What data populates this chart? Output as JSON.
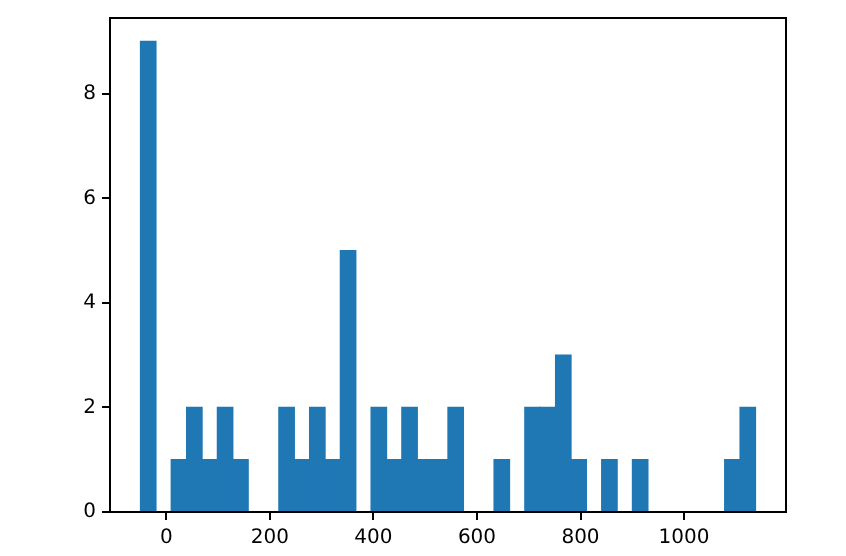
{
  "chart_data": {
    "type": "histogram",
    "bins": [
      -50,
      -20.3,
      9.4,
      39.1,
      68.8,
      98.5,
      128.2,
      157.9,
      187.6,
      217.3,
      247,
      276.7,
      306.4,
      336.1,
      365.8,
      395.5,
      425.2,
      454.9,
      484.6,
      514.3,
      544,
      573.7,
      603.4,
      633.1,
      662.8,
      692.5,
      722.2,
      751.9,
      781.6,
      811.3,
      841,
      870.7,
      900.4,
      930.1,
      959.8,
      989.5,
      1019.2,
      1048.9,
      1078.6,
      1108.3,
      1138
    ],
    "values": [
      9,
      0,
      1,
      2,
      1,
      2,
      1,
      0,
      0,
      2,
      1,
      2,
      1,
      5,
      0,
      2,
      1,
      2,
      1,
      1,
      2,
      0,
      0,
      1,
      0,
      2,
      2,
      3,
      1,
      0,
      1,
      0,
      1,
      0,
      0,
      0,
      0,
      0,
      1,
      2
    ],
    "color": "#1f77b4",
    "xlim": [
      -109,
      1197
    ],
    "ylim": [
      0,
      9.45
    ],
    "xticks": [
      0,
      200,
      400,
      600,
      800,
      1000
    ],
    "yticks": [
      0,
      2,
      4,
      6,
      8
    ],
    "grid": false,
    "legend": false
  }
}
